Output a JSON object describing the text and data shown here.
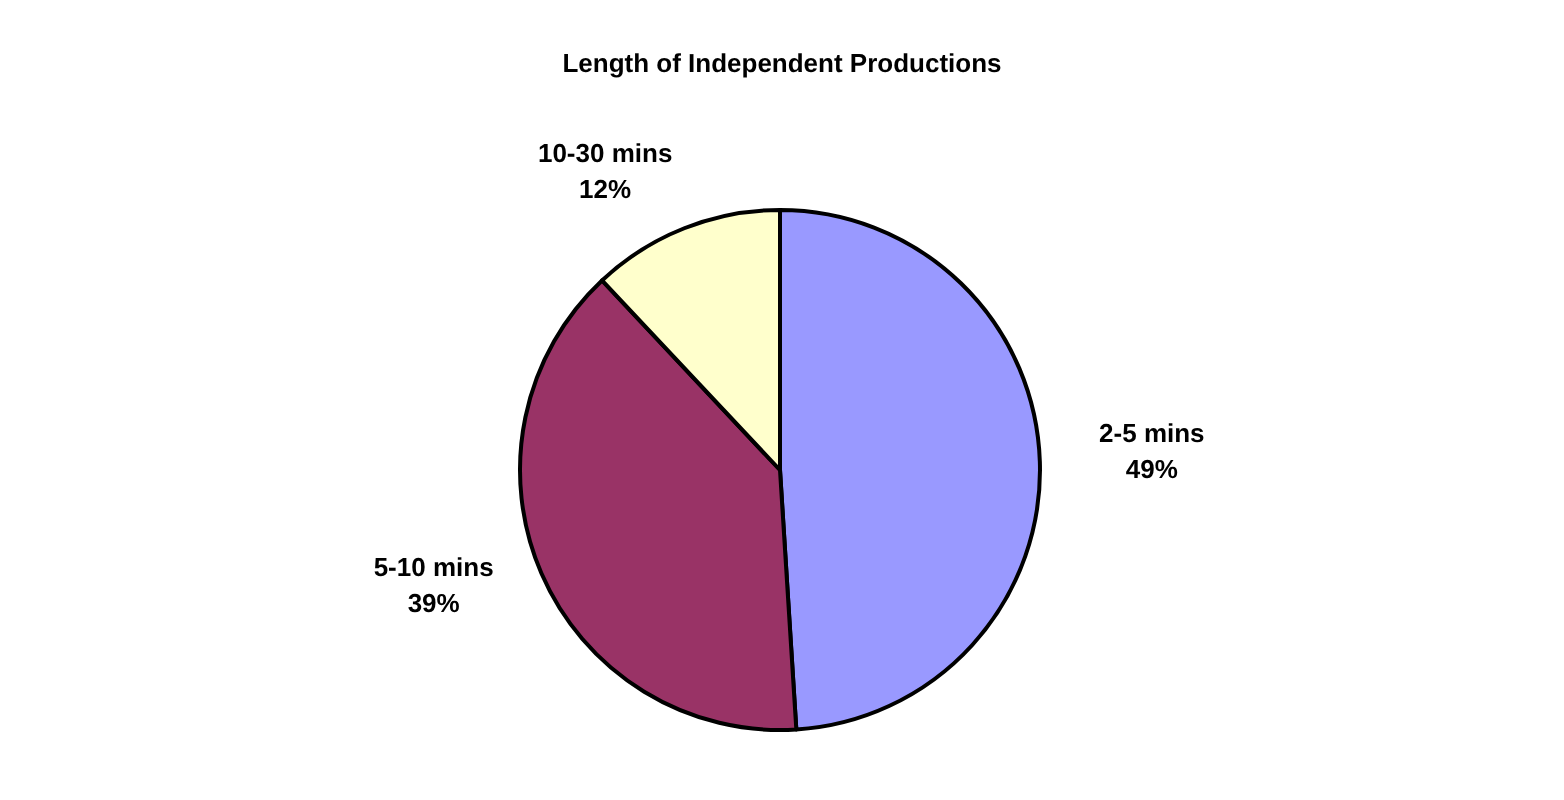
{
  "chart_data": {
    "type": "pie",
    "title": "Length of Independent Productions",
    "categories": [
      "2-5 mins",
      "5-10 mins",
      "10-30 mins"
    ],
    "values": [
      49,
      39,
      12
    ],
    "colors": [
      "#9999ff",
      "#993366",
      "#ffffcc"
    ],
    "value_labels": [
      "49%",
      "39%",
      "12%"
    ]
  }
}
